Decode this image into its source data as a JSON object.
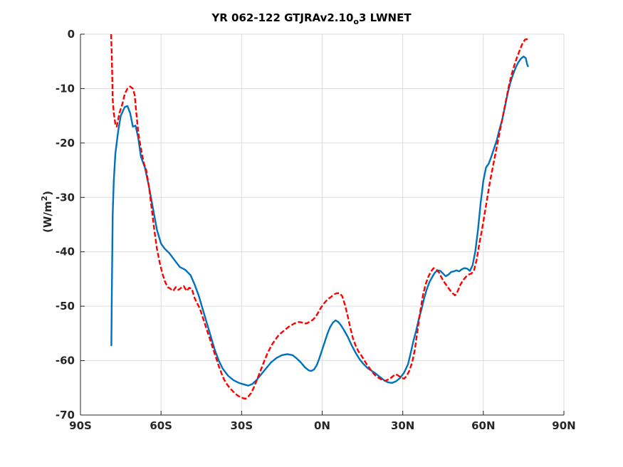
{
  "title": {
    "prefix": "YR 062-122 GTJRAv2.10",
    "subscript": "o",
    "suffix": "3 LWNET"
  },
  "ylabel": {
    "text": "(W/m",
    "superscript": "2",
    "close": ")"
  },
  "chart_data": {
    "type": "line",
    "title": "YR 062-122 GTJRAv2.10_o3 LWNET",
    "xlabel": "",
    "ylabel": "(W/m^2)",
    "xlim": [
      -90,
      90
    ],
    "ylim": [
      -70,
      0
    ],
    "grid": true,
    "x_ticks": [
      -90,
      -60,
      -30,
      0,
      30,
      60,
      90
    ],
    "x_tick_labels": [
      "90S",
      "60S",
      "30S",
      "0N",
      "30N",
      "60N",
      "90N"
    ],
    "y_ticks": [
      -70,
      -60,
      -50,
      -40,
      -30,
      -20,
      -10,
      0
    ],
    "y_tick_labels": [
      "-70",
      "-60",
      "-50",
      "-40",
      "-30",
      "-20",
      "-10",
      "0"
    ],
    "series": [
      {
        "color": "#0072BD",
        "style": "solid",
        "points": [
          [
            -78.5,
            -57.2
          ],
          [
            -78.3,
            -47
          ],
          [
            -78.0,
            -33
          ],
          [
            -77.6,
            -27
          ],
          [
            -77.0,
            -22
          ],
          [
            -76.0,
            -18
          ],
          [
            -75.0,
            -15
          ],
          [
            -73.5,
            -13.4
          ],
          [
            -72.5,
            -13.2
          ],
          [
            -71.5,
            -14.5
          ],
          [
            -70.5,
            -17
          ],
          [
            -69.5,
            -16.8
          ],
          [
            -68.5,
            -19
          ],
          [
            -67.5,
            -22.5
          ],
          [
            -66.0,
            -24.5
          ],
          [
            -64.5,
            -28
          ],
          [
            -63.0,
            -32
          ],
          [
            -61.5,
            -36
          ],
          [
            -60.0,
            -38.5
          ],
          [
            -58.5,
            -39.5
          ],
          [
            -57.0,
            -40.2
          ],
          [
            -55.0,
            -41.5
          ],
          [
            -53.0,
            -42.8
          ],
          [
            -51.0,
            -43.3
          ],
          [
            -49.0,
            -44.3
          ],
          [
            -47.5,
            -46
          ],
          [
            -46.0,
            -48
          ],
          [
            -44.5,
            -50.5
          ],
          [
            -43.0,
            -53
          ],
          [
            -41.5,
            -55.5
          ],
          [
            -40.0,
            -58
          ],
          [
            -38.5,
            -60
          ],
          [
            -37.0,
            -61.5
          ],
          [
            -35.0,
            -62.8
          ],
          [
            -33.0,
            -63.6
          ],
          [
            -31.0,
            -64.1
          ],
          [
            -29.0,
            -64.4
          ],
          [
            -27.5,
            -64.6
          ],
          [
            -26.0,
            -64.3
          ],
          [
            -24.5,
            -63.6
          ],
          [
            -23.0,
            -62.7
          ],
          [
            -21.0,
            -61.5
          ],
          [
            -19.0,
            -60.3
          ],
          [
            -17.0,
            -59.5
          ],
          [
            -15.0,
            -59.0
          ],
          [
            -13.0,
            -58.8
          ],
          [
            -11.0,
            -59.0
          ],
          [
            -9.5,
            -59.6
          ],
          [
            -8.0,
            -60.3
          ],
          [
            -6.5,
            -61.2
          ],
          [
            -5.0,
            -61.8
          ],
          [
            -4.0,
            -61.9
          ],
          [
            -3.0,
            -61.6
          ],
          [
            -2.0,
            -60.8
          ],
          [
            -1.0,
            -59.5
          ],
          [
            0.0,
            -58.0
          ],
          [
            1.0,
            -56.5
          ],
          [
            2.0,
            -55.0
          ],
          [
            3.0,
            -53.8
          ],
          [
            4.0,
            -53.0
          ],
          [
            5.0,
            -52.6
          ],
          [
            6.0,
            -52.9
          ],
          [
            7.0,
            -53.5
          ],
          [
            8.0,
            -54.3
          ],
          [
            9.5,
            -55.6
          ],
          [
            11.0,
            -57.2
          ],
          [
            12.5,
            -58.6
          ],
          [
            14.0,
            -59.8
          ],
          [
            15.5,
            -60.7
          ],
          [
            17.0,
            -61.4
          ],
          [
            18.5,
            -61.9
          ],
          [
            20.0,
            -62.4
          ],
          [
            21.5,
            -63.0
          ],
          [
            23.0,
            -63.6
          ],
          [
            24.5,
            -64.0
          ],
          [
            26.0,
            -64.1
          ],
          [
            27.5,
            -63.8
          ],
          [
            29.0,
            -63.2
          ],
          [
            30.5,
            -62.2
          ],
          [
            32.0,
            -60.6
          ],
          [
            33.0,
            -58.5
          ],
          [
            34.0,
            -56.3
          ],
          [
            35.0,
            -54.5
          ],
          [
            36.0,
            -52.3
          ],
          [
            37.0,
            -50.5
          ],
          [
            38.0,
            -48.5
          ],
          [
            39.0,
            -46.8
          ],
          [
            40.0,
            -45.5
          ],
          [
            41.0,
            -44.6
          ],
          [
            42.0,
            -43.8
          ],
          [
            43.0,
            -43.4
          ],
          [
            44.0,
            -43.5
          ],
          [
            45.0,
            -44.0
          ],
          [
            46.0,
            -44.5
          ],
          [
            47.0,
            -44.2
          ],
          [
            48.0,
            -43.7
          ],
          [
            49.0,
            -43.6
          ],
          [
            50.0,
            -43.4
          ],
          [
            51.0,
            -43.6
          ],
          [
            52.0,
            -43.2
          ],
          [
            53.0,
            -43.0
          ],
          [
            54.0,
            -43.1
          ],
          [
            55.0,
            -43.5
          ],
          [
            56.0,
            -42.5
          ],
          [
            57.0,
            -40.0
          ],
          [
            58.0,
            -36.0
          ],
          [
            59.0,
            -31.0
          ],
          [
            60.0,
            -27.0
          ],
          [
            61.0,
            -24.5
          ],
          [
            62.0,
            -23.8
          ],
          [
            63.0,
            -22.5
          ],
          [
            64.0,
            -21.0
          ],
          [
            65.0,
            -19.5
          ],
          [
            66.0,
            -17.5
          ],
          [
            67.0,
            -15.8
          ],
          [
            68.0,
            -13.5
          ],
          [
            69.0,
            -11.0
          ],
          [
            70.0,
            -9.0
          ],
          [
            71.0,
            -7.5
          ],
          [
            72.0,
            -6.2
          ],
          [
            73.0,
            -5.2
          ],
          [
            74.0,
            -4.5
          ],
          [
            75.0,
            -4.1
          ],
          [
            75.8,
            -4.4
          ],
          [
            76.3,
            -5.5
          ],
          [
            76.6,
            -5.9
          ]
        ]
      },
      {
        "color": "#FF0000",
        "style": "dashed",
        "points": [
          [
            -78.6,
            0
          ],
          [
            -78.4,
            -3
          ],
          [
            -78.2,
            -7
          ],
          [
            -78.0,
            -12
          ],
          [
            -77.6,
            -14.5
          ],
          [
            -77.0,
            -16.5
          ],
          [
            -76.5,
            -17
          ],
          [
            -75.5,
            -14.5
          ],
          [
            -74.5,
            -13
          ],
          [
            -73.5,
            -11
          ],
          [
            -72.5,
            -10
          ],
          [
            -71.5,
            -9.6
          ],
          [
            -70.5,
            -10
          ],
          [
            -69.8,
            -11.2
          ],
          [
            -69.3,
            -14
          ],
          [
            -68.5,
            -18
          ],
          [
            -67.5,
            -21
          ],
          [
            -66.5,
            -23.5
          ],
          [
            -65.5,
            -25
          ],
          [
            -64.5,
            -28
          ],
          [
            -63.5,
            -32
          ],
          [
            -62.5,
            -36
          ],
          [
            -61.5,
            -39.5
          ],
          [
            -60.5,
            -42
          ],
          [
            -59.5,
            -44
          ],
          [
            -58.5,
            -45.5
          ],
          [
            -57.5,
            -46.5
          ],
          [
            -56.5,
            -46.8
          ],
          [
            -55.5,
            -47.2
          ],
          [
            -54.5,
            -46.5
          ],
          [
            -53.5,
            -47.0
          ],
          [
            -52.5,
            -46.6
          ],
          [
            -51.5,
            -46.3
          ],
          [
            -50.5,
            -47.2
          ],
          [
            -49.5,
            -46.6
          ],
          [
            -48.5,
            -46.8
          ],
          [
            -47.5,
            -48.5
          ],
          [
            -46.5,
            -49.5
          ],
          [
            -45.5,
            -50.5
          ],
          [
            -44.5,
            -52.0
          ],
          [
            -43.5,
            -53.5
          ],
          [
            -42.5,
            -55.0
          ],
          [
            -41.5,
            -56.5
          ],
          [
            -40.5,
            -58.0
          ],
          [
            -39.5,
            -59.5
          ],
          [
            -38.5,
            -61.0
          ],
          [
            -37.5,
            -62.3
          ],
          [
            -36.5,
            -63.5
          ],
          [
            -35.5,
            -64.3
          ],
          [
            -34.5,
            -65.0
          ],
          [
            -33.5,
            -65.5
          ],
          [
            -32.5,
            -66.0
          ],
          [
            -31.5,
            -66.4
          ],
          [
            -30.5,
            -66.7
          ],
          [
            -29.5,
            -66.9
          ],
          [
            -28.5,
            -67.0
          ],
          [
            -27.5,
            -66.6
          ],
          [
            -26.5,
            -66.0
          ],
          [
            -25.5,
            -65.0
          ],
          [
            -24.5,
            -63.8
          ],
          [
            -23.5,
            -62.5
          ],
          [
            -22.5,
            -61.3
          ],
          [
            -21.5,
            -60.0
          ],
          [
            -20.5,
            -58.8
          ],
          [
            -19.5,
            -57.8
          ],
          [
            -18.5,
            -56.9
          ],
          [
            -17.5,
            -56.2
          ],
          [
            -16.5,
            -55.5
          ],
          [
            -15.5,
            -55.0
          ],
          [
            -14.5,
            -54.6
          ],
          [
            -13.5,
            -54.2
          ],
          [
            -12.5,
            -53.8
          ],
          [
            -11.5,
            -53.5
          ],
          [
            -10.5,
            -53.2
          ],
          [
            -9.5,
            -53.0
          ],
          [
            -8.5,
            -52.9
          ],
          [
            -7.5,
            -53.0
          ],
          [
            -6.5,
            -53.2
          ],
          [
            -5.5,
            -53.1
          ],
          [
            -4.5,
            -52.8
          ],
          [
            -3.5,
            -52.5
          ],
          [
            -2.5,
            -52.0
          ],
          [
            -1.5,
            -51.2
          ],
          [
            -0.5,
            -50.3
          ],
          [
            0.5,
            -49.6
          ],
          [
            1.5,
            -49.0
          ],
          [
            2.5,
            -48.6
          ],
          [
            3.5,
            -48.2
          ],
          [
            4.5,
            -47.8
          ],
          [
            5.5,
            -47.6
          ],
          [
            6.5,
            -47.6
          ],
          [
            7.5,
            -48.2
          ],
          [
            8.5,
            -49.8
          ],
          [
            9.5,
            -51.8
          ],
          [
            10.5,
            -54.0
          ],
          [
            11.5,
            -56.0
          ],
          [
            12.5,
            -57.3
          ],
          [
            13.5,
            -58.3
          ],
          [
            14.5,
            -59.0
          ],
          [
            15.5,
            -59.8
          ],
          [
            16.5,
            -60.6
          ],
          [
            17.5,
            -61.3
          ],
          [
            18.5,
            -62.0
          ],
          [
            19.5,
            -62.6
          ],
          [
            20.5,
            -63.0
          ],
          [
            21.5,
            -63.3
          ],
          [
            22.5,
            -63.6
          ],
          [
            23.5,
            -63.7
          ],
          [
            24.5,
            -63.5
          ],
          [
            25.5,
            -63.2
          ],
          [
            26.5,
            -62.8
          ],
          [
            27.5,
            -62.5
          ],
          [
            28.5,
            -62.8
          ],
          [
            29.5,
            -63.2
          ],
          [
            30.5,
            -63.3
          ],
          [
            31.5,
            -62.8
          ],
          [
            32.5,
            -61.8
          ],
          [
            33.5,
            -60.3
          ],
          [
            34.5,
            -58.0
          ],
          [
            35.5,
            -54.5
          ],
          [
            36.5,
            -51.0
          ],
          [
            37.5,
            -48.0
          ],
          [
            38.5,
            -46.0
          ],
          [
            39.5,
            -44.6
          ],
          [
            40.5,
            -43.6
          ],
          [
            41.5,
            -43.0
          ],
          [
            42.5,
            -43.3
          ],
          [
            43.5,
            -43.8
          ],
          [
            44.5,
            -44.8
          ],
          [
            45.5,
            -45.6
          ],
          [
            46.5,
            -46.3
          ],
          [
            47.5,
            -47.0
          ],
          [
            48.5,
            -47.6
          ],
          [
            49.5,
            -48.0
          ],
          [
            50.5,
            -47.2
          ],
          [
            51.5,
            -46.0
          ],
          [
            52.5,
            -45.2
          ],
          [
            53.5,
            -44.6
          ],
          [
            54.5,
            -44.2
          ],
          [
            55.5,
            -44.0
          ],
          [
            56.5,
            -43.5
          ],
          [
            57.5,
            -41.5
          ],
          [
            58.5,
            -38.5
          ],
          [
            59.5,
            -36.0
          ],
          [
            60.5,
            -33.0
          ],
          [
            61.5,
            -30.0
          ],
          [
            62.5,
            -27.0
          ],
          [
            63.5,
            -24.5
          ],
          [
            64.5,
            -22.0
          ],
          [
            65.5,
            -19.5
          ],
          [
            66.5,
            -17.0
          ],
          [
            67.5,
            -14.5
          ],
          [
            68.5,
            -12.0
          ],
          [
            69.5,
            -9.5
          ],
          [
            70.5,
            -7.5
          ],
          [
            71.5,
            -5.8
          ],
          [
            72.5,
            -4.3
          ],
          [
            73.5,
            -3.0
          ],
          [
            74.5,
            -1.8
          ],
          [
            75.5,
            -1.0
          ],
          [
            76.5,
            -0.9
          ]
        ]
      }
    ]
  }
}
